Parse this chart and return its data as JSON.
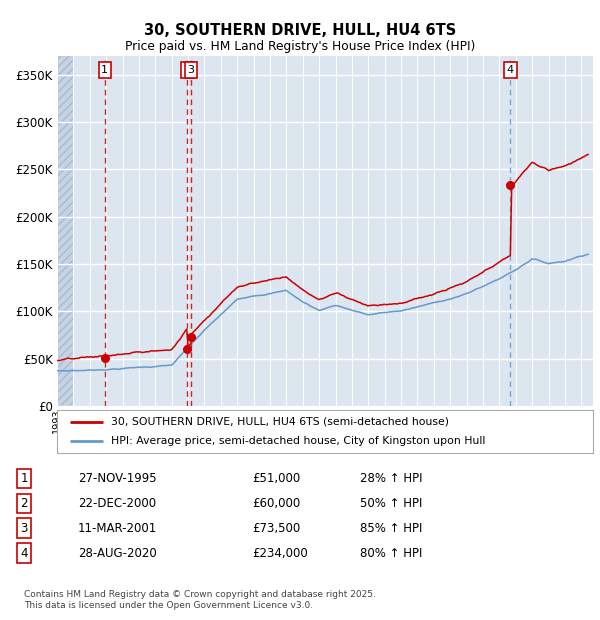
{
  "title_line1": "30, SOUTHERN DRIVE, HULL, HU4 6TS",
  "title_line2": "Price paid vs. HM Land Registry's House Price Index (HPI)",
  "legend_line1": "30, SOUTHERN DRIVE, HULL, HU4 6TS (semi-detached house)",
  "legend_line2": "HPI: Average price, semi-detached house, City of Kingston upon Hull",
  "transactions": [
    {
      "num": 1,
      "date_str": "27-NOV-1995",
      "price_str": "£51,000",
      "pct_str": "28% ↑ HPI",
      "date_f": 1995.917
    },
    {
      "num": 2,
      "date_str": "22-DEC-2000",
      "price_str": "£60,000",
      "pct_str": "50% ↑ HPI",
      "date_f": 2000.958
    },
    {
      "num": 3,
      "date_str": "11-MAR-2001",
      "price_str": "£73,500",
      "pct_str": "85% ↑ HPI",
      "date_f": 2001.167
    },
    {
      "num": 4,
      "date_str": "28-AUG-2020",
      "price_str": "£234,000",
      "pct_str": "80% ↑ HPI",
      "date_f": 2020.667
    }
  ],
  "dot_prices": [
    51000,
    60000,
    73500,
    234000
  ],
  "footer": "Contains HM Land Registry data © Crown copyright and database right 2025.\nThis data is licensed under the Open Government Licence v3.0.",
  "bg_color": "#dce6f1",
  "white": "#ffffff",
  "red_color": "#cc0000",
  "blue_color": "#6699cc",
  "yticks": [
    0,
    50000,
    100000,
    150000,
    200000,
    250000,
    300000,
    350000
  ],
  "ylim": [
    0,
    370000
  ],
  "xlim": [
    1993.0,
    2025.7
  ],
  "hatch_end": 1994.0,
  "x_start": 1993,
  "x_end": 2025,
  "vline4_color": "#6699cc"
}
